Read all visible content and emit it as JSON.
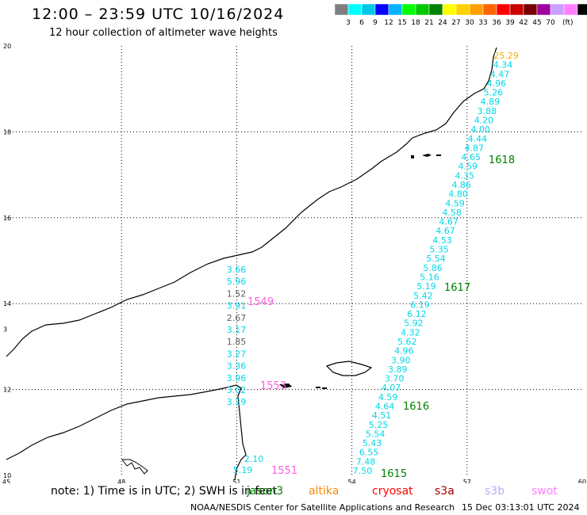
{
  "title": "12:00 – 23:59 UTC 10/16/2024",
  "subtitle": "12 hour collection of altimeter wave heights",
  "colorbar": {
    "colors": [
      "#7f7f7f",
      "#00ffff",
      "#00c8e8",
      "#0000ff",
      "#00b4ff",
      "#00ff00",
      "#00c800",
      "#008000",
      "#ffff00",
      "#ffd000",
      "#ffa000",
      "#ff6400",
      "#ff0000",
      "#c80000",
      "#780000",
      "#a000a0",
      "#c8a0ff",
      "#ff80ff",
      "#000000"
    ],
    "labels": [
      "3",
      "6",
      "9",
      "12",
      "15",
      "18",
      "21",
      "24",
      "27",
      "30",
      "33",
      "36",
      "39",
      "42",
      "45",
      "70"
    ],
    "unit": "(ft)"
  },
  "axes": {
    "x_ticks": [
      "45",
      "48",
      "51",
      "54",
      "57",
      "60"
    ],
    "y_ticks": [
      "20",
      "18",
      "16",
      "14",
      "12",
      "10"
    ],
    "y_tick_values": [
      20,
      18,
      16,
      14,
      12,
      10
    ],
    "x_tick_values": [
      45,
      48,
      51,
      54,
      57,
      60
    ]
  },
  "tracks": [
    {
      "name": "track-1549",
      "time_label": "1549",
      "time_color": "#ff60e0",
      "values": [
        "3.66",
        "5.96",
        "1.52",
        "3.91",
        "2.67",
        "3.17",
        "1.85",
        "3.27",
        "3.36",
        "3.96",
        "3.02",
        "3.29"
      ],
      "colors": [
        "cyan",
        "cyan",
        "grey",
        "cyan",
        "grey",
        "cyan",
        "grey",
        "cyan",
        "cyan",
        "cyan",
        "cyan",
        "cyan"
      ]
    },
    {
      "name": "track-1551",
      "time_label": "1551",
      "time_color": "#ff60e0",
      "values": [
        "2.10",
        "5.19"
      ],
      "colors": [
        "cyan",
        "cyan"
      ]
    },
    {
      "name": "track-1553",
      "time_label": "1553",
      "time_color": "#ff60e0"
    },
    {
      "name": "track-1615-1618",
      "values": [
        "25.29",
        "4.34",
        "4.47",
        "4.96",
        "5.26",
        "4.89",
        "3.88",
        "4.20",
        "4.00",
        "4.44",
        "4.87",
        "4.65",
        "4.59",
        "4.35",
        "4.86",
        "4.80",
        "4.59",
        "4.58",
        "4.67",
        "4.67",
        "4.53",
        "5.35",
        "5.54",
        "5.86",
        "5.16",
        "5.19",
        "5.42",
        "6.19",
        "6.12",
        "5.92",
        "4.32",
        "5.62",
        "4.96",
        "3.90",
        "3.89",
        "3.70",
        "4.07",
        "4.59",
        "4.64",
        "4.51",
        "5.25",
        "5.54",
        "5.43",
        "6.55",
        "7.48",
        "7.50"
      ],
      "labels": [
        {
          "text": "1618"
        },
        {
          "text": "1617"
        },
        {
          "text": "1616"
        },
        {
          "text": "1615"
        }
      ]
    }
  ],
  "note": "note: 1) Time is in UTC; 2) SWH is in feet",
  "satellites": [
    {
      "name": "jason3",
      "color": "#008000"
    },
    {
      "name": "altika",
      "color": "#ff8c00"
    },
    {
      "name": "cryosat",
      "color": "#ff0000"
    },
    {
      "name": "s3a",
      "color": "#a00000"
    },
    {
      "name": "s3b",
      "color": "#b8a8ff"
    },
    {
      "name": "swot",
      "color": "#ff80ff"
    }
  ],
  "footer_left": "NOAA/NESDIS Center for Satellite Applications and Research",
  "footer_right": "15 Dec 03:13:01 UTC 2024"
}
